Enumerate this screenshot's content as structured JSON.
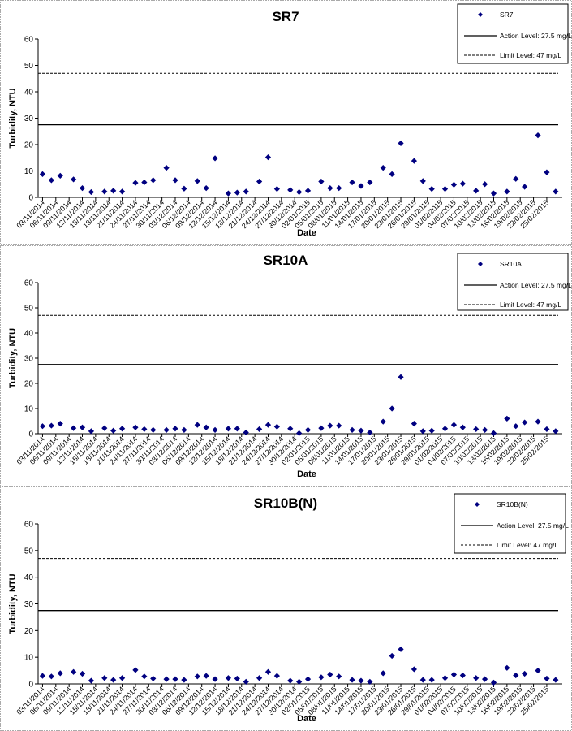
{
  "chart_data": [
    {
      "type": "scatter",
      "title": "SR7",
      "xlabel": "Date",
      "ylabel": "Turbidity, NTU",
      "ylim": [
        0,
        60
      ],
      "yticks": [
        0,
        10,
        20,
        30,
        40,
        50,
        60
      ],
      "x_tick_labels": [
        "03/11/2014",
        "06/11/2014",
        "09/11/2014",
        "12/11/2014",
        "15/11/2014",
        "18/11/2014",
        "21/11/2014",
        "24/11/2014",
        "27/11/2014",
        "30/11/2014",
        "03/12/2014",
        "06/12/2014",
        "09/12/2014",
        "12/12/2014",
        "15/12/2014",
        "18/12/2014",
        "21/12/2014",
        "24/12/2014",
        "27/12/2014",
        "30/12/2014",
        "02/01/2015",
        "05/01/2015",
        "08/01/2015",
        "11/01/2015",
        "14/01/2015",
        "17/01/2015",
        "20/01/2015",
        "23/01/2015",
        "26/01/2015",
        "29/01/2015",
        "01/02/2015",
        "04/02/2015",
        "07/02/2015",
        "10/02/2015",
        "13/02/2015",
        "16/02/2015",
        "19/02/2015",
        "22/02/2015",
        "25/02/2015"
      ],
      "grid": false,
      "legend_position": "top-right",
      "legend": [
        {
          "label": "SR7",
          "kind": "marker"
        },
        {
          "label": "Action Level: 27.5 mg/L",
          "kind": "solid"
        },
        {
          "label": "Limit Level: 47 mg/L",
          "kind": "dashed"
        }
      ],
      "reference_lines": [
        {
          "name": "Action Level: 27.5 mg/L",
          "value": 27.5,
          "style": "solid"
        },
        {
          "name": "Limit Level: 47 mg/L",
          "value": 47,
          "style": "dashed"
        }
      ],
      "series": [
        {
          "name": "SR7",
          "x": [
            "03/11/2014",
            "05/11/2014",
            "07/11/2014",
            "10/11/2014",
            "12/11/2014",
            "14/11/2014",
            "17/11/2014",
            "19/11/2014",
            "21/11/2014",
            "24/11/2014",
            "26/11/2014",
            "28/11/2014",
            "01/12/2014",
            "03/12/2014",
            "05/12/2014",
            "08/12/2014",
            "10/12/2014",
            "12/12/2014",
            "15/12/2014",
            "17/12/2014",
            "19/12/2014",
            "22/12/2014",
            "24/12/2014",
            "26/12/2014",
            "29/12/2014",
            "31/12/2014",
            "02/01/2015",
            "05/01/2015",
            "07/01/2015",
            "09/01/2015",
            "12/01/2015",
            "14/01/2015",
            "16/01/2015",
            "19/01/2015",
            "21/01/2015",
            "23/01/2015",
            "26/01/2015",
            "28/01/2015",
            "30/01/2015",
            "02/02/2015",
            "04/02/2015",
            "06/02/2015",
            "09/02/2015",
            "11/02/2015",
            "13/02/2015",
            "16/02/2015",
            "18/02/2015",
            "20/02/2015",
            "23/02/2015",
            "25/02/2015",
            "27/02/2015"
          ],
          "values": [
            8.8,
            6.5,
            8.2,
            6.8,
            3.5,
            2.0,
            2.2,
            2.5,
            2.2,
            5.5,
            5.7,
            6.5,
            11.2,
            6.5,
            3.3,
            6.2,
            3.5,
            14.8,
            1.5,
            1.8,
            2.2,
            6.0,
            15.2,
            3.2,
            2.8,
            2.0,
            2.5,
            6.0,
            3.5,
            3.5,
            5.7,
            4.3,
            5.7,
            11.2,
            8.8,
            20.5,
            13.8,
            6.2,
            3.2,
            3.2,
            4.8,
            5.2,
            2.5,
            5.0,
            1.5,
            2.2,
            7.0,
            4.0,
            23.5,
            9.5,
            2.2
          ]
        }
      ]
    },
    {
      "type": "scatter",
      "title": "SR10A",
      "xlabel": "Date",
      "ylabel": "Turbidity, NTU",
      "ylim": [
        0,
        60
      ],
      "yticks": [
        0,
        10,
        20,
        30,
        40,
        50,
        60
      ],
      "x_tick_labels": [
        "03/11/2014",
        "06/11/2014",
        "09/11/2014",
        "12/11/2014",
        "15/11/2014",
        "18/11/2014",
        "21/11/2014",
        "24/11/2014",
        "27/11/2014",
        "30/11/2014",
        "03/12/2014",
        "06/12/2014",
        "09/12/2014",
        "12/12/2014",
        "15/12/2014",
        "18/12/2014",
        "21/12/2014",
        "24/12/2014",
        "27/12/2014",
        "30/12/2014",
        "02/01/2015",
        "05/01/2015",
        "08/01/2015",
        "11/01/2015",
        "14/01/2015",
        "17/01/2015",
        "20/01/2015",
        "23/01/2015",
        "26/01/2015",
        "29/01/2015",
        "01/02/2015",
        "04/02/2015",
        "07/02/2015",
        "10/02/2015",
        "13/02/2015",
        "16/02/2015",
        "19/02/2015",
        "22/02/2015",
        "25/02/2015"
      ],
      "grid": false,
      "legend_position": "top-right",
      "legend": [
        {
          "label": "SR10A",
          "kind": "marker"
        },
        {
          "label": "Action Level: 27.5 mg/L",
          "kind": "solid"
        },
        {
          "label": "Limit Level: 47 mg/L",
          "kind": "dashed"
        }
      ],
      "reference_lines": [
        {
          "name": "Action Level: 27.5 mg/L",
          "value": 27.5,
          "style": "solid"
        },
        {
          "name": "Limit Level: 47 mg/L",
          "value": 47,
          "style": "dashed"
        }
      ],
      "series": [
        {
          "name": "SR10A",
          "x": [
            "03/11/2014",
            "05/11/2014",
            "07/11/2014",
            "10/11/2014",
            "12/11/2014",
            "14/11/2014",
            "17/11/2014",
            "19/11/2014",
            "21/11/2014",
            "24/11/2014",
            "26/11/2014",
            "28/11/2014",
            "01/12/2014",
            "03/12/2014",
            "05/12/2014",
            "08/12/2014",
            "10/12/2014",
            "12/12/2014",
            "15/12/2014",
            "17/12/2014",
            "19/12/2014",
            "22/12/2014",
            "24/12/2014",
            "26/12/2014",
            "29/12/2014",
            "31/12/2014",
            "02/01/2015",
            "05/01/2015",
            "07/01/2015",
            "09/01/2015",
            "12/01/2015",
            "14/01/2015",
            "16/01/2015",
            "19/01/2015",
            "21/01/2015",
            "23/01/2015",
            "26/01/2015",
            "28/01/2015",
            "30/01/2015",
            "02/02/2015",
            "04/02/2015",
            "06/02/2015",
            "09/02/2015",
            "11/02/2015",
            "13/02/2015",
            "16/02/2015",
            "18/02/2015",
            "20/02/2015",
            "23/02/2015",
            "25/02/2015",
            "27/02/2015"
          ],
          "values": [
            3.0,
            3.2,
            4.0,
            2.2,
            2.5,
            1.0,
            2.2,
            1.2,
            2.0,
            2.5,
            1.8,
            1.5,
            1.5,
            2.0,
            1.5,
            3.5,
            2.5,
            1.5,
            2.0,
            2.0,
            0.5,
            1.8,
            3.5,
            2.8,
            2.0,
            0.2,
            1.5,
            2.2,
            3.2,
            3.2,
            1.5,
            1.2,
            0.5,
            4.8,
            10.0,
            22.5,
            4.0,
            1.0,
            1.2,
            2.0,
            3.5,
            2.5,
            1.8,
            1.5,
            0.2,
            6.0,
            3.0,
            4.5,
            4.8,
            1.8,
            1.0
          ]
        }
      ]
    },
    {
      "type": "scatter",
      "title": "SR10B(N)",
      "xlabel": "Date",
      "ylabel": "Turbidity, NTU",
      "ylim": [
        0,
        60
      ],
      "yticks": [
        0,
        10,
        20,
        30,
        40,
        50,
        60
      ],
      "x_tick_labels": [
        "03/11/2014",
        "06/11/2014",
        "09/11/2014",
        "12/11/2014",
        "15/11/2014",
        "18/11/2014",
        "21/11/2014",
        "24/11/2014",
        "27/11/2014",
        "30/11/2014",
        "03/12/2014",
        "06/12/2014",
        "09/12/2014",
        "12/12/2014",
        "15/12/2014",
        "18/12/2014",
        "21/12/2014",
        "24/12/2014",
        "27/12/2014",
        "30/12/2014",
        "02/01/2015",
        "05/01/2015",
        "08/01/2015",
        "11/01/2015",
        "14/01/2015",
        "17/01/2015",
        "20/01/2015",
        "23/01/2015",
        "26/01/2015",
        "29/01/2015",
        "01/02/2015",
        "04/02/2015",
        "07/02/2015",
        "10/02/2015",
        "13/02/2015",
        "16/02/2015",
        "19/02/2015",
        "22/02/2015",
        "25/02/2015"
      ],
      "grid": false,
      "legend_position": "top-right",
      "legend": [
        {
          "label": "SR10B(N)",
          "kind": "marker"
        },
        {
          "label": "Action Level: 27.5 mg/L",
          "kind": "solid"
        },
        {
          "label": "Limit Level: 47 mg/L",
          "kind": "dashed"
        }
      ],
      "reference_lines": [
        {
          "name": "Action Level: 27.5 mg/L",
          "value": 27.5,
          "style": "solid"
        },
        {
          "name": "Limit Level: 47 mg/L",
          "value": 47,
          "style": "dashed"
        }
      ],
      "series": [
        {
          "name": "SR10B(N)",
          "x": [
            "03/11/2014",
            "05/11/2014",
            "07/11/2014",
            "10/11/2014",
            "12/11/2014",
            "14/11/2014",
            "17/11/2014",
            "19/11/2014",
            "21/11/2014",
            "24/11/2014",
            "26/11/2014",
            "28/11/2014",
            "01/12/2014",
            "03/12/2014",
            "05/12/2014",
            "08/12/2014",
            "10/12/2014",
            "12/12/2014",
            "15/12/2014",
            "17/12/2014",
            "19/12/2014",
            "22/12/2014",
            "24/12/2014",
            "26/12/2014",
            "29/12/2014",
            "31/12/2014",
            "02/01/2015",
            "05/01/2015",
            "07/01/2015",
            "09/01/2015",
            "12/01/2015",
            "14/01/2015",
            "16/01/2015",
            "19/01/2015",
            "21/01/2015",
            "23/01/2015",
            "26/01/2015",
            "28/01/2015",
            "30/01/2015",
            "02/02/2015",
            "04/02/2015",
            "06/02/2015",
            "09/02/2015",
            "11/02/2015",
            "13/02/2015",
            "16/02/2015",
            "18/02/2015",
            "20/02/2015",
            "23/02/2015",
            "25/02/2015",
            "27/02/2015"
          ],
          "values": [
            3.0,
            2.8,
            4.0,
            4.5,
            3.8,
            1.2,
            2.2,
            1.5,
            2.2,
            5.2,
            2.8,
            2.0,
            1.8,
            1.8,
            1.5,
            2.8,
            3.0,
            1.8,
            2.2,
            2.0,
            0.8,
            2.2,
            4.5,
            3.0,
            1.2,
            0.8,
            1.8,
            2.5,
            3.5,
            2.8,
            1.5,
            1.2,
            0.8,
            4.0,
            10.5,
            13.0,
            5.5,
            1.5,
            1.5,
            2.2,
            3.5,
            3.2,
            2.2,
            1.8,
            0.5,
            6.0,
            3.2,
            3.8,
            5.0,
            2.0,
            1.5
          ]
        }
      ]
    }
  ]
}
